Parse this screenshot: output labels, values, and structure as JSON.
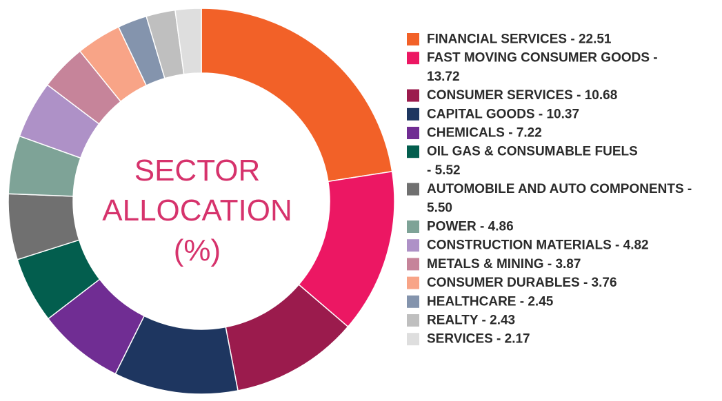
{
  "chart_data": {
    "type": "pie",
    "title": "SECTOR ALLOCATION (%)",
    "title_lines": [
      "SECTOR",
      "ALLOCATION",
      "(%)"
    ],
    "legend_placement": "right",
    "categories": [
      "FINANCIAL SERVICES",
      "FAST MOVING CONSUMER GOODS",
      "CONSUMER SERVICES",
      "CAPITAL GOODS",
      "CHEMICALS",
      "OIL GAS & CONSUMABLE FUELS",
      "AUTOMOBILE AND AUTO COMPONENTS",
      "POWER",
      "CONSTRUCTION MATERIALS",
      "METALS & MINING",
      "CONSUMER DURABLES",
      "HEALTHCARE",
      "REALTY",
      "SERVICES"
    ],
    "values": [
      22.51,
      13.72,
      10.68,
      10.37,
      7.22,
      5.52,
      5.5,
      4.86,
      4.82,
      3.87,
      3.76,
      2.45,
      2.43,
      2.17
    ],
    "colors": [
      "#f26128",
      "#ec1763",
      "#9b1b4d",
      "#1e3660",
      "#702d93",
      "#035e4e",
      "#707070",
      "#7ea397",
      "#ae91c7",
      "#c6849a",
      "#f8a487",
      "#8494ad",
      "#bfbfbf",
      "#dedede"
    ],
    "legend_lines": [
      [
        "FINANCIAL SERVICES - 22.51"
      ],
      [
        "FAST MOVING CONSUMER GOODS -",
        "13.72"
      ],
      [
        "CONSUMER SERVICES - 10.68"
      ],
      [
        "CAPITAL GOODS - 10.37"
      ],
      [
        "CHEMICALS - 7.22"
      ],
      [
        "OIL GAS & CONSUMABLE FUELS",
        "- 5.52"
      ],
      [
        "AUTOMOBILE AND AUTO COMPONENTS -",
        "5.50"
      ],
      [
        "POWER - 4.86"
      ],
      [
        "CONSTRUCTION MATERIALS - 4.82"
      ],
      [
        "METALS & MINING - 3.87"
      ],
      [
        "CONSUMER DURABLES - 3.76"
      ],
      [
        "HEALTHCARE - 2.45"
      ],
      [
        "REALTY - 2.43"
      ],
      [
        "SERVICES - 2.17"
      ]
    ],
    "title_color": "#d6336c"
  }
}
